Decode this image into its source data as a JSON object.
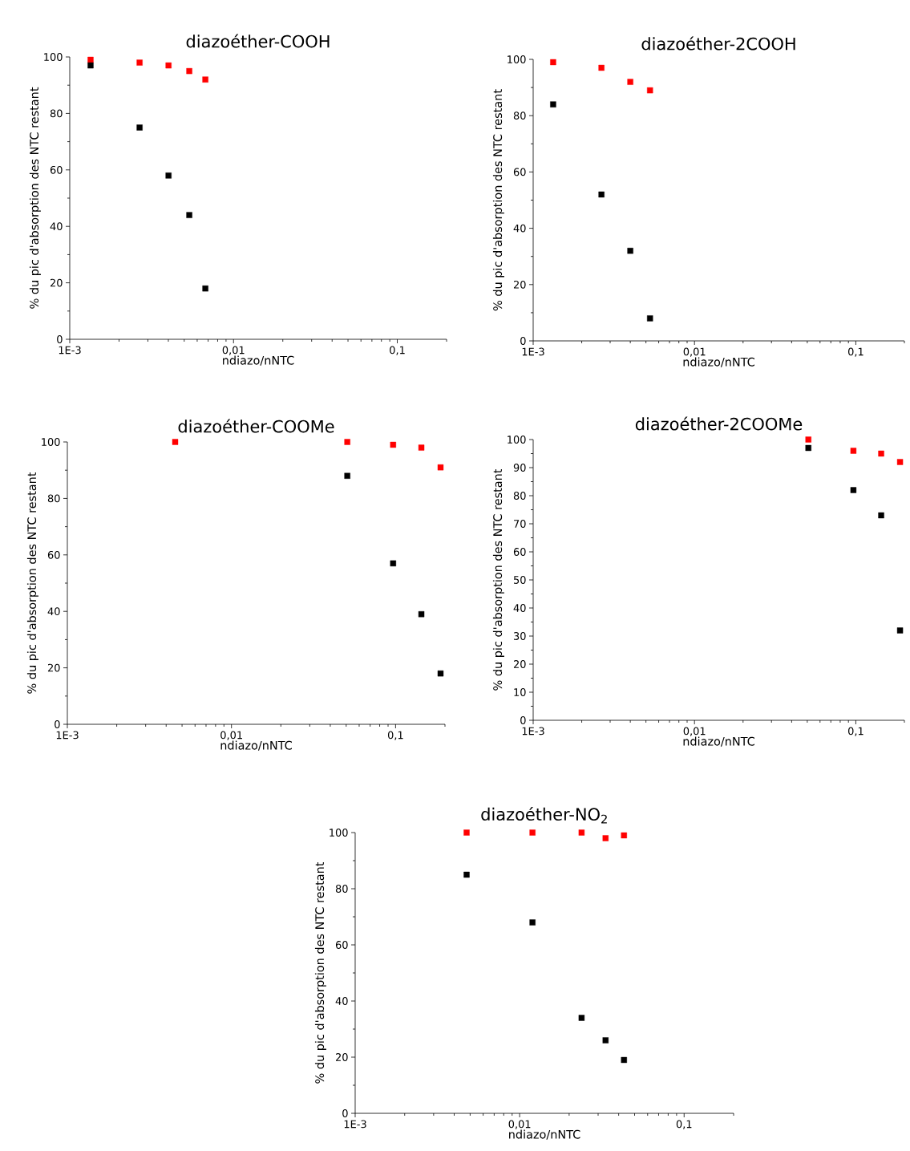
{
  "chart_data": [
    {
      "type": "scatter",
      "title": "diazoéther-COOH",
      "xlabel": "ndiazo/nNTC",
      "ylabel": "% du pic d'absorption des NTC restant",
      "log": "x",
      "marker": "square",
      "xlim": [
        0.001,
        0.2
      ],
      "xticks": [
        {
          "value": 0.001,
          "label": "1E-3"
        },
        {
          "value": 0.01,
          "label": "0,01"
        },
        {
          "value": 0.1,
          "label": "0,1"
        }
      ],
      "ylim": [
        0,
        100
      ],
      "yticks": [
        0,
        20,
        40,
        60,
        80,
        100
      ],
      "x": [
        0.00134,
        0.00267,
        0.00401,
        0.00537,
        0.00673
      ],
      "series": [
        {
          "color": "#ff0000",
          "values": [
            99,
            98,
            97,
            95,
            92
          ]
        },
        {
          "color": "#000000",
          "values": [
            97,
            75,
            58,
            44,
            18
          ]
        }
      ]
    },
    {
      "type": "scatter",
      "title": "diazoéther-2COOH",
      "xlabel": "ndiazo/nNTC",
      "ylabel": "% du pic d'absorption des NTC restant",
      "log": "x",
      "marker": "square",
      "xlim": [
        0.001,
        0.2
      ],
      "xticks": [
        {
          "value": 0.001,
          "label": "1E-3"
        },
        {
          "value": 0.01,
          "label": "0,01"
        },
        {
          "value": 0.1,
          "label": "0,1"
        }
      ],
      "ylim": [
        0,
        100
      ],
      "yticks": [
        0,
        20,
        40,
        60,
        80,
        100
      ],
      "x": [
        0.00133,
        0.00265,
        0.004,
        0.0053
      ],
      "series": [
        {
          "color": "#ff0000",
          "values": [
            99,
            97,
            92,
            89
          ]
        },
        {
          "color": "#000000",
          "values": [
            84,
            52,
            32,
            8
          ]
        }
      ]
    },
    {
      "type": "scatter",
      "title": "diazoéther-COOMe",
      "xlabel": "ndiazo/nNTC",
      "ylabel": "% du pic d'absorption des NTC restant",
      "log": "x",
      "marker": "square",
      "xlim": [
        0.001,
        0.2
      ],
      "xticks": [
        {
          "value": 0.001,
          "label": "1E-3"
        },
        {
          "value": 0.01,
          "label": "0,01"
        },
        {
          "value": 0.1,
          "label": "0,1"
        }
      ],
      "ylim": [
        0,
        100
      ],
      "yticks": [
        0,
        20,
        40,
        60,
        80,
        100
      ],
      "x": [
        0.00454,
        0.0508,
        0.0966,
        0.1436,
        0.188
      ],
      "series": [
        {
          "color": "#ff0000",
          "values": [
            100,
            100,
            99,
            98,
            91
          ]
        },
        {
          "color": "#000000",
          "values": [
            null,
            88,
            57,
            39,
            18
          ]
        }
      ]
    },
    {
      "type": "scatter",
      "title": "diazoéther-2COOMe",
      "xlabel": "ndiazo/nNTC",
      "ylabel": "% du pic d'absorption des NTC restant",
      "log": "x",
      "marker": "square",
      "xlim": [
        0.001,
        0.2
      ],
      "xticks": [
        {
          "value": 0.001,
          "label": "1E-3"
        },
        {
          "value": 0.01,
          "label": "0,01"
        },
        {
          "value": 0.1,
          "label": "0,1"
        }
      ],
      "ylim": [
        0,
        100
      ],
      "yticks": [
        0,
        10,
        20,
        30,
        40,
        50,
        60,
        70,
        80,
        90,
        100
      ],
      "x": [
        0.0508,
        0.0966,
        0.1436,
        0.188
      ],
      "series": [
        {
          "color": "#ff0000",
          "values": [
            100,
            96,
            95,
            92
          ]
        },
        {
          "color": "#000000",
          "values": [
            97,
            82,
            73,
            32
          ]
        }
      ]
    },
    {
      "type": "scatter",
      "title": "diazoéther-NO$_{2}$",
      "xlabel": "ndiazo/nNTC",
      "ylabel": "% du pic d'absorption des NTC restant",
      "log": "x",
      "marker": "square",
      "xlim": [
        0.001,
        0.2
      ],
      "xticks": [
        {
          "value": 0.001,
          "label": "1E-3"
        },
        {
          "value": 0.01,
          "label": "0,01"
        },
        {
          "value": 0.1,
          "label": "0,1"
        }
      ],
      "ylim": [
        0,
        100
      ],
      "yticks": [
        0,
        20,
        40,
        60,
        80,
        100
      ],
      "x": [
        0.00476,
        0.01197,
        0.0238,
        0.0333,
        0.0431
      ],
      "series": [
        {
          "color": "#ff0000",
          "values": [
            100,
            100,
            100,
            98,
            99
          ]
        },
        {
          "color": "#000000",
          "values": [
            85,
            68,
            34,
            26,
            19
          ]
        }
      ]
    }
  ]
}
